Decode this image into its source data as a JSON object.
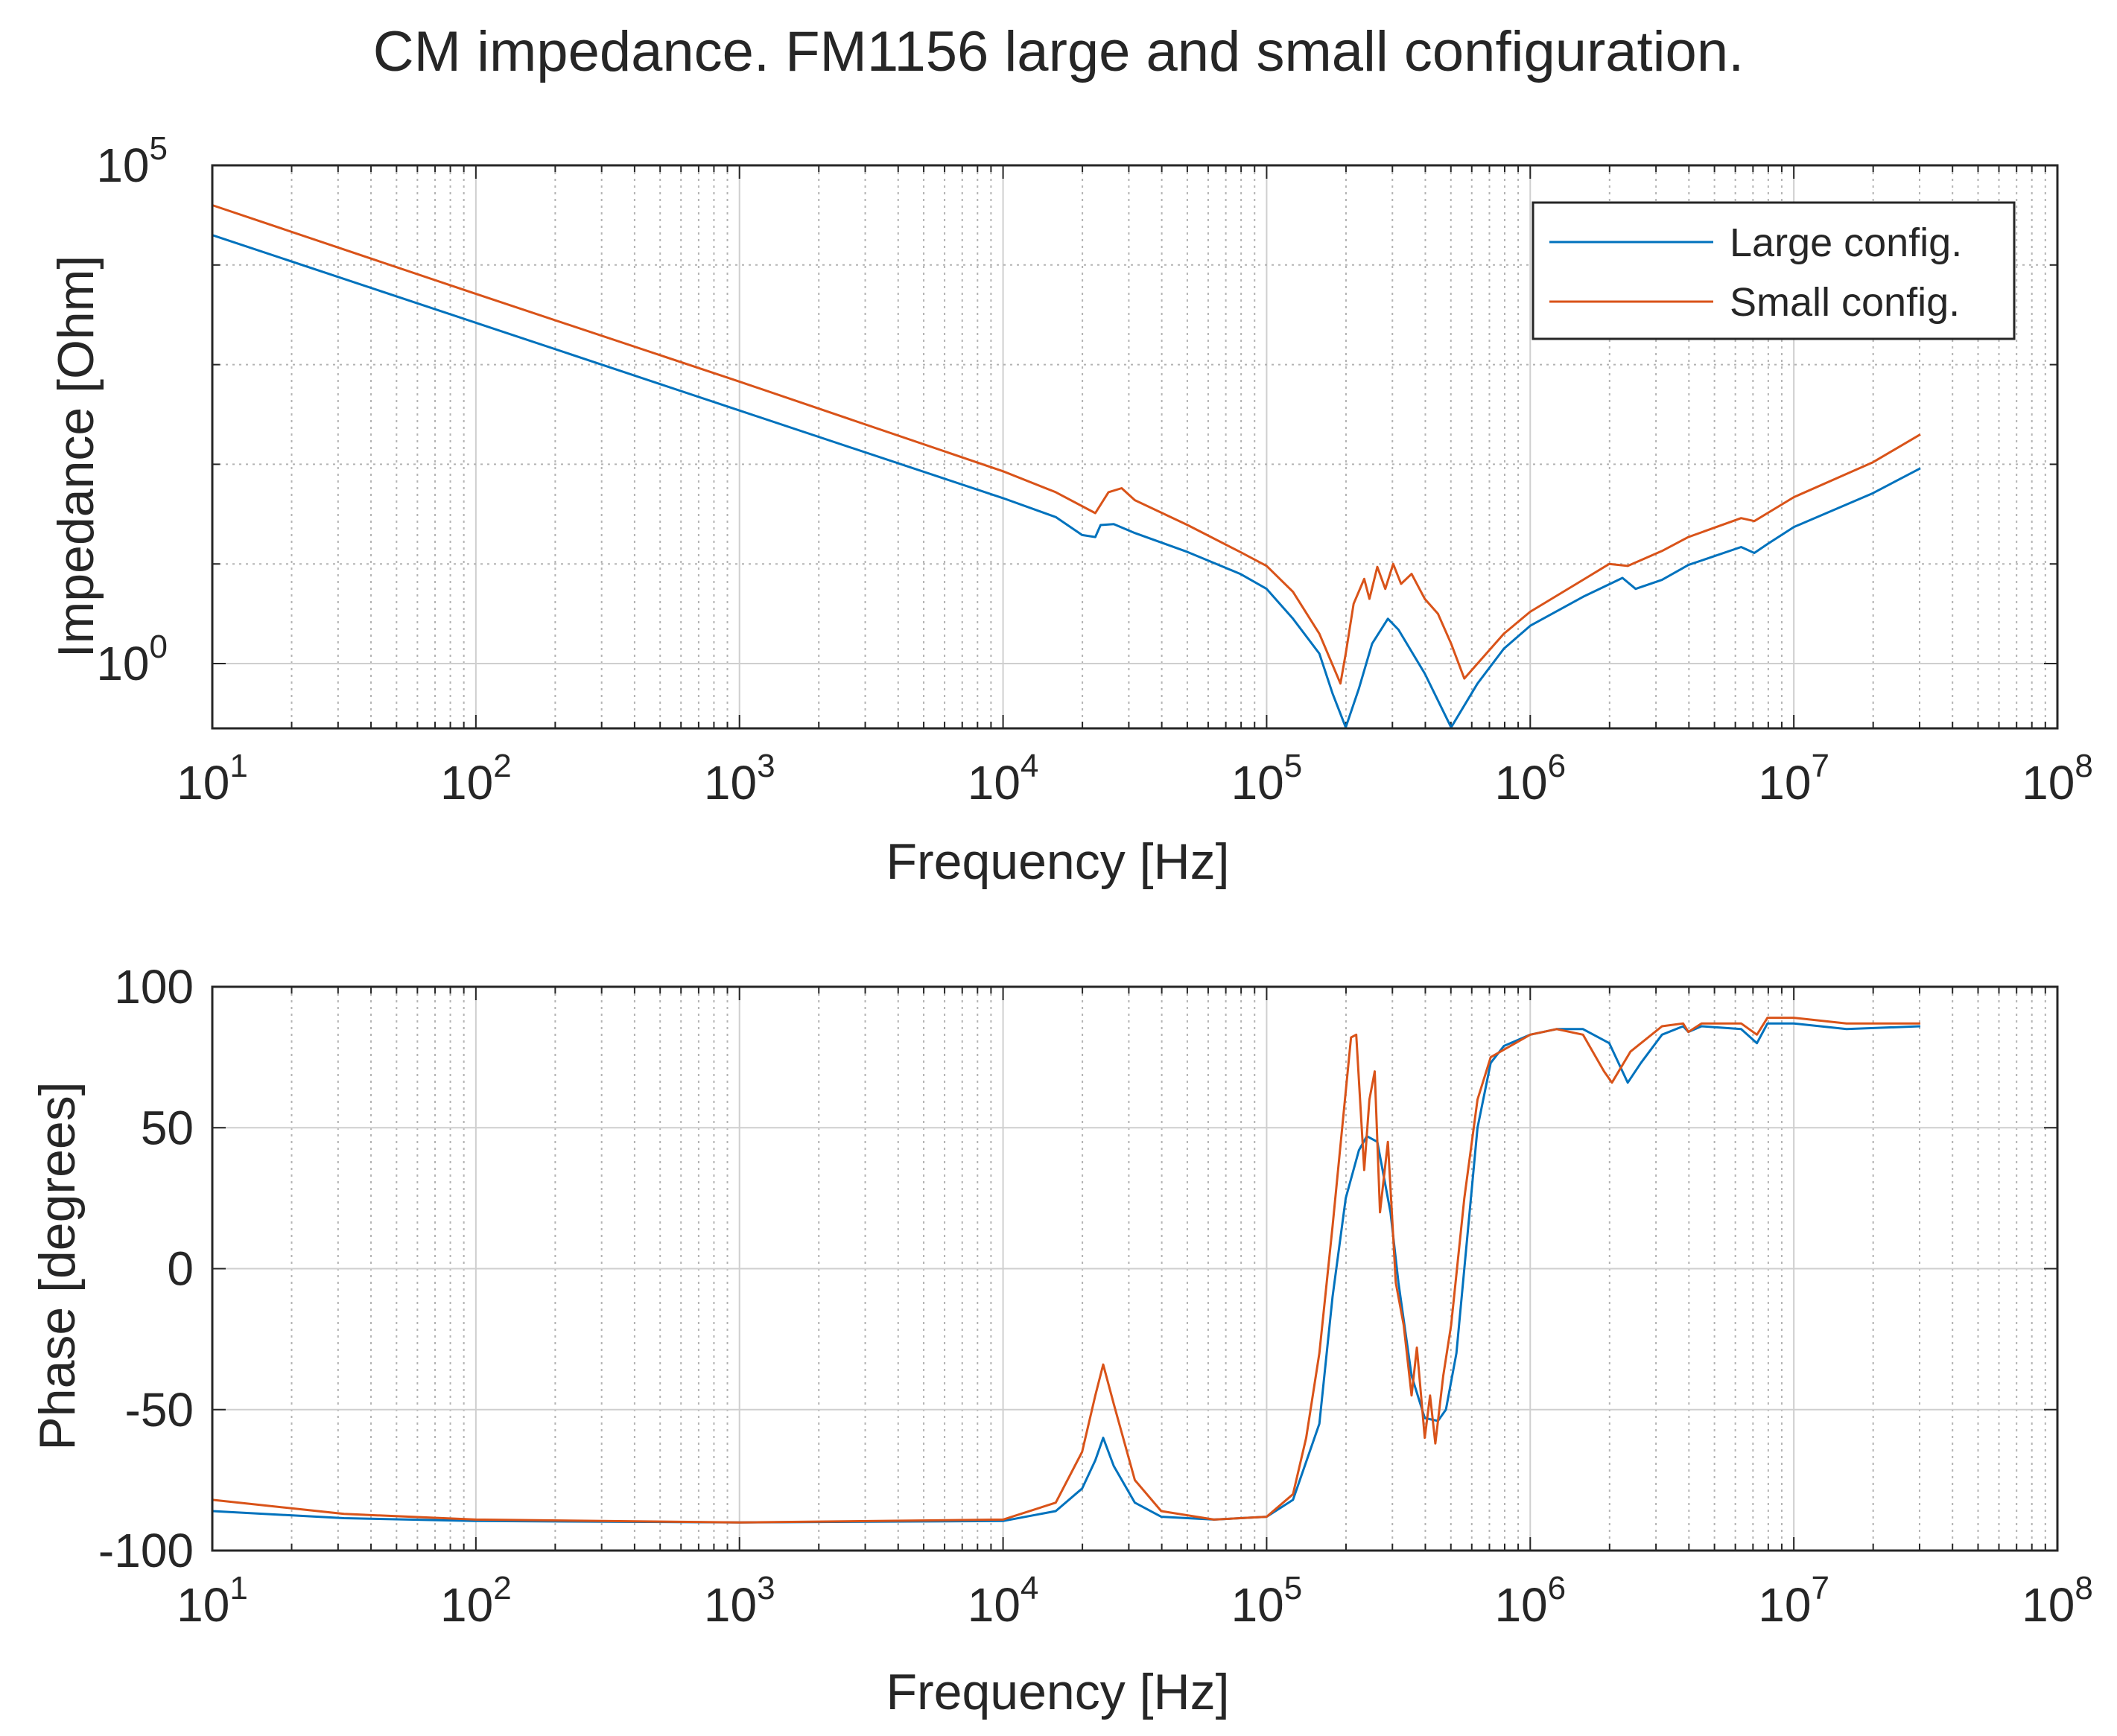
{
  "figure_title": "CM impedance. FM1156 large and small configuration.",
  "colors": {
    "large": "#0072BD",
    "small": "#D95319",
    "grid_fine": "#b3b3b3",
    "grid_major": "#cfcfcf",
    "axis": "#262626"
  },
  "legend": {
    "large_label": "Large config.",
    "small_label": "Small config.",
    "location": "top-right"
  },
  "chart_data": [
    {
      "type": "line",
      "title": "CM impedance. FM1156 large and small configuration.",
      "xlabel": "Frequency [Hz]",
      "ylabel": "Impedance [Ohm]",
      "xscale": "log",
      "yscale": "log",
      "xlim": [
        10,
        100000000
      ],
      "ylim_log10": [
        -0.65,
        5
      ],
      "grid": "major+minor",
      "xticks": [
        {
          "exp": 1,
          "base": "10",
          "sup": "1"
        },
        {
          "exp": 2,
          "base": "10",
          "sup": "2"
        },
        {
          "exp": 3,
          "base": "10",
          "sup": "3"
        },
        {
          "exp": 4,
          "base": "10",
          "sup": "4"
        },
        {
          "exp": 5,
          "base": "10",
          "sup": "5"
        },
        {
          "exp": 6,
          "base": "10",
          "sup": "6"
        },
        {
          "exp": 7,
          "base": "10",
          "sup": "7"
        },
        {
          "exp": 8,
          "base": "10",
          "sup": "8"
        }
      ],
      "yticks": [
        {
          "exp": 0,
          "base": "10",
          "sup": "0"
        },
        {
          "exp": 5,
          "base": "10",
          "sup": "5"
        }
      ],
      "series": [
        {
          "name": "Large config.",
          "key": "large",
          "points_log10": [
            [
              1.0,
              4.3
            ],
            [
              2.0,
              3.42
            ],
            [
              3.0,
              2.54
            ],
            [
              4.0,
              1.66
            ],
            [
              4.2,
              1.47
            ],
            [
              4.3,
              1.29
            ],
            [
              4.35,
              1.27
            ],
            [
              4.37,
              1.39
            ],
            [
              4.42,
              1.4
            ],
            [
              4.5,
              1.31
            ],
            [
              4.7,
              1.12
            ],
            [
              4.9,
              0.9
            ],
            [
              5.0,
              0.75
            ],
            [
              5.1,
              0.45
            ],
            [
              5.2,
              0.1
            ],
            [
              5.25,
              -0.3
            ],
            [
              5.3,
              -0.64
            ],
            [
              5.35,
              -0.25
            ],
            [
              5.4,
              0.2
            ],
            [
              5.46,
              0.45
            ],
            [
              5.5,
              0.34
            ],
            [
              5.6,
              -0.1
            ],
            [
              5.7,
              -0.64
            ],
            [
              5.8,
              -0.2
            ],
            [
              5.9,
              0.15
            ],
            [
              6.0,
              0.38
            ],
            [
              6.2,
              0.67
            ],
            [
              6.35,
              0.86
            ],
            [
              6.4,
              0.75
            ],
            [
              6.5,
              0.84
            ],
            [
              6.6,
              0.99
            ],
            [
              6.8,
              1.17
            ],
            [
              6.85,
              1.11
            ],
            [
              6.9,
              1.2
            ],
            [
              7.0,
              1.37
            ],
            [
              7.3,
              1.71
            ],
            [
              7.48,
              1.96
            ]
          ]
        },
        {
          "name": "Small config.",
          "key": "small",
          "points_log10": [
            [
              1.0,
              4.6
            ],
            [
              2.0,
              3.71
            ],
            [
              3.0,
              2.83
            ],
            [
              4.0,
              1.93
            ],
            [
              4.2,
              1.72
            ],
            [
              4.35,
              1.51
            ],
            [
              4.4,
              1.72
            ],
            [
              4.45,
              1.76
            ],
            [
              4.5,
              1.64
            ],
            [
              4.7,
              1.39
            ],
            [
              4.9,
              1.12
            ],
            [
              5.0,
              0.98
            ],
            [
              5.1,
              0.72
            ],
            [
              5.2,
              0.3
            ],
            [
              5.28,
              -0.2
            ],
            [
              5.3,
              0.1
            ],
            [
              5.33,
              0.6
            ],
            [
              5.37,
              0.85
            ],
            [
              5.39,
              0.65
            ],
            [
              5.42,
              0.97
            ],
            [
              5.45,
              0.75
            ],
            [
              5.48,
              1.0
            ],
            [
              5.51,
              0.8
            ],
            [
              5.55,
              0.9
            ],
            [
              5.6,
              0.65
            ],
            [
              5.65,
              0.5
            ],
            [
              5.7,
              0.2
            ],
            [
              5.75,
              -0.15
            ],
            [
              5.8,
              0.0
            ],
            [
              5.9,
              0.3
            ],
            [
              6.0,
              0.52
            ],
            [
              6.2,
              0.84
            ],
            [
              6.3,
              1.0
            ],
            [
              6.37,
              0.98
            ],
            [
              6.5,
              1.13
            ],
            [
              6.6,
              1.27
            ],
            [
              6.8,
              1.46
            ],
            [
              6.85,
              1.43
            ],
            [
              6.9,
              1.51
            ],
            [
              7.0,
              1.67
            ],
            [
              7.3,
              2.02
            ],
            [
              7.48,
              2.3
            ]
          ]
        }
      ]
    },
    {
      "type": "line",
      "title": "",
      "xlabel": "Frequency [Hz]",
      "ylabel": "Phase [degrees]",
      "xscale": "log",
      "yscale": "linear",
      "xlim": [
        10,
        100000000
      ],
      "ylim": [
        -100,
        100
      ],
      "grid": "major+minor-x",
      "xticks": [
        {
          "exp": 1,
          "base": "10",
          "sup": "1"
        },
        {
          "exp": 2,
          "base": "10",
          "sup": "2"
        },
        {
          "exp": 3,
          "base": "10",
          "sup": "3"
        },
        {
          "exp": 4,
          "base": "10",
          "sup": "4"
        },
        {
          "exp": 5,
          "base": "10",
          "sup": "5"
        },
        {
          "exp": 6,
          "base": "10",
          "sup": "6"
        },
        {
          "exp": 7,
          "base": "10",
          "sup": "7"
        },
        {
          "exp": 8,
          "base": "10",
          "sup": "8"
        }
      ],
      "yticks": [
        {
          "value": -100,
          "label": "-100"
        },
        {
          "value": -50,
          "label": "-50"
        },
        {
          "value": 0,
          "label": "0"
        },
        {
          "value": 50,
          "label": "50"
        },
        {
          "value": 100,
          "label": "100"
        }
      ],
      "series": [
        {
          "name": "Large config.",
          "key": "large",
          "points_log10x": [
            [
              1.0,
              -86
            ],
            [
              1.5,
              -88.5
            ],
            [
              2.0,
              -89.5
            ],
            [
              3.0,
              -90
            ],
            [
              4.0,
              -89.5
            ],
            [
              4.2,
              -86
            ],
            [
              4.3,
              -78
            ],
            [
              4.35,
              -68
            ],
            [
              4.38,
              -60
            ],
            [
              4.42,
              -70
            ],
            [
              4.5,
              -83
            ],
            [
              4.6,
              -88
            ],
            [
              4.8,
              -89
            ],
            [
              5.0,
              -88
            ],
            [
              5.1,
              -82
            ],
            [
              5.2,
              -55
            ],
            [
              5.25,
              -10
            ],
            [
              5.3,
              25
            ],
            [
              5.35,
              42
            ],
            [
              5.38,
              47
            ],
            [
              5.42,
              45
            ],
            [
              5.47,
              20
            ],
            [
              5.5,
              -5
            ],
            [
              5.55,
              -38
            ],
            [
              5.6,
              -53
            ],
            [
              5.65,
              -54
            ],
            [
              5.68,
              -50
            ],
            [
              5.72,
              -30
            ],
            [
              5.75,
              0
            ],
            [
              5.8,
              50
            ],
            [
              5.85,
              73
            ],
            [
              5.9,
              79
            ],
            [
              6.0,
              83
            ],
            [
              6.1,
              85
            ],
            [
              6.2,
              85
            ],
            [
              6.3,
              80
            ],
            [
              6.37,
              66
            ],
            [
              6.42,
              73
            ],
            [
              6.5,
              83
            ],
            [
              6.58,
              86
            ],
            [
              6.6,
              84
            ],
            [
              6.65,
              86
            ],
            [
              6.8,
              85
            ],
            [
              6.86,
              80
            ],
            [
              6.9,
              87
            ],
            [
              7.0,
              87
            ],
            [
              7.2,
              85
            ],
            [
              7.48,
              86
            ]
          ]
        },
        {
          "name": "Small config.",
          "key": "small",
          "points_log10x": [
            [
              1.0,
              -82
            ],
            [
              1.5,
              -87
            ],
            [
              2.0,
              -89
            ],
            [
              3.0,
              -90
            ],
            [
              4.0,
              -89
            ],
            [
              4.2,
              -83
            ],
            [
              4.3,
              -65
            ],
            [
              4.35,
              -45
            ],
            [
              4.38,
              -34
            ],
            [
              4.42,
              -48
            ],
            [
              4.5,
              -75
            ],
            [
              4.6,
              -86
            ],
            [
              4.8,
              -89
            ],
            [
              5.0,
              -88
            ],
            [
              5.1,
              -80
            ],
            [
              5.15,
              -60
            ],
            [
              5.2,
              -30
            ],
            [
              5.25,
              15
            ],
            [
              5.32,
              82
            ],
            [
              5.34,
              83
            ],
            [
              5.37,
              35
            ],
            [
              5.39,
              60
            ],
            [
              5.41,
              70
            ],
            [
              5.43,
              20
            ],
            [
              5.46,
              45
            ],
            [
              5.49,
              -5
            ],
            [
              5.52,
              -20
            ],
            [
              5.55,
              -45
            ],
            [
              5.57,
              -28
            ],
            [
              5.6,
              -60
            ],
            [
              5.62,
              -45
            ],
            [
              5.64,
              -62
            ],
            [
              5.67,
              -38
            ],
            [
              5.7,
              -20
            ],
            [
              5.75,
              25
            ],
            [
              5.8,
              60
            ],
            [
              5.85,
              75
            ],
            [
              6.0,
              83
            ],
            [
              6.1,
              85
            ],
            [
              6.2,
              83
            ],
            [
              6.28,
              70
            ],
            [
              6.31,
              66
            ],
            [
              6.38,
              77
            ],
            [
              6.5,
              86
            ],
            [
              6.58,
              87
            ],
            [
              6.6,
              84
            ],
            [
              6.65,
              87
            ],
            [
              6.8,
              87
            ],
            [
              6.86,
              83
            ],
            [
              6.9,
              89
            ],
            [
              7.0,
              89
            ],
            [
              7.2,
              87
            ],
            [
              7.48,
              87
            ]
          ]
        }
      ]
    }
  ]
}
